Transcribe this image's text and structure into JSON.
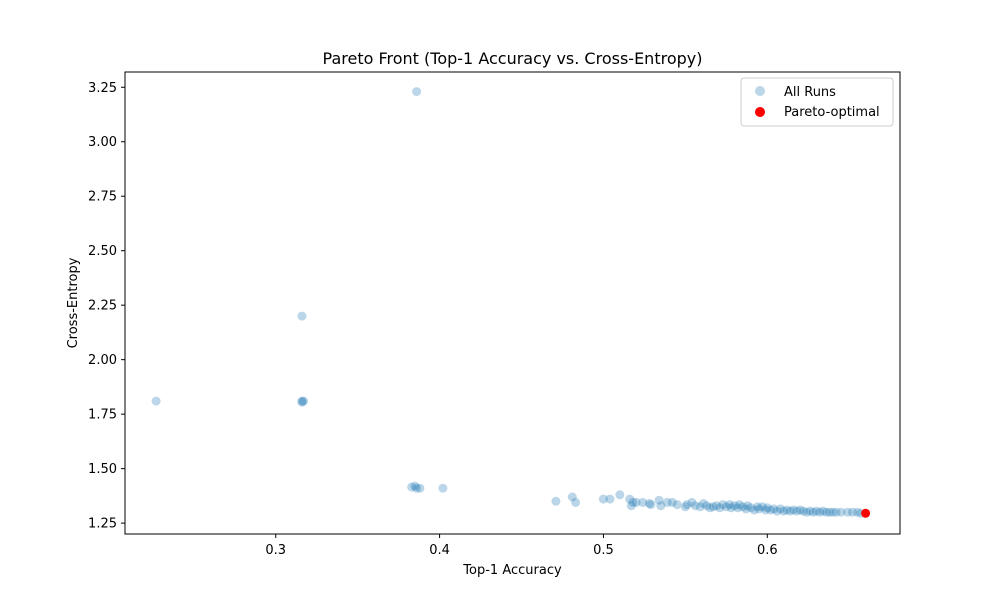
{
  "chart_data": {
    "type": "scatter",
    "title": "Pareto Front (Top-1 Accuracy vs. Cross-Entropy)",
    "xlabel": "Top-1 Accuracy",
    "ylabel": "Cross-Entropy",
    "xlim": [
      0.208,
      0.681
    ],
    "ylim": [
      1.2,
      3.32
    ],
    "xticks": [
      0.3,
      0.4,
      0.5,
      0.6
    ],
    "xtick_labels": [
      "0.3",
      "0.4",
      "0.5",
      "0.6"
    ],
    "yticks": [
      1.25,
      1.5,
      1.75,
      2.0,
      2.25,
      2.5,
      2.75,
      3.0,
      3.25
    ],
    "ytick_labels": [
      "1.25",
      "1.50",
      "1.75",
      "2.00",
      "2.25",
      "2.50",
      "2.75",
      "3.00",
      "3.25"
    ],
    "grid": false,
    "legend_position": "top-right",
    "series": [
      {
        "name": "All Runs",
        "color": "#1f77b4",
        "alpha": 0.3,
        "points": [
          [
            0.227,
            1.81
          ],
          [
            0.316,
            2.2
          ],
          [
            0.316,
            1.81
          ],
          [
            0.317,
            1.81
          ],
          [
            0.316,
            1.805
          ],
          [
            0.386,
            3.23
          ],
          [
            0.383,
            1.415
          ],
          [
            0.385,
            1.42
          ],
          [
            0.386,
            1.41
          ],
          [
            0.388,
            1.41
          ],
          [
            0.402,
            1.41
          ],
          [
            0.471,
            1.35
          ],
          [
            0.481,
            1.37
          ],
          [
            0.483,
            1.345
          ],
          [
            0.5,
            1.36
          ],
          [
            0.504,
            1.36
          ],
          [
            0.51,
            1.38
          ],
          [
            0.516,
            1.36
          ],
          [
            0.517,
            1.33
          ],
          [
            0.518,
            1.345
          ],
          [
            0.52,
            1.345
          ],
          [
            0.524,
            1.345
          ],
          [
            0.528,
            1.34
          ],
          [
            0.529,
            1.335
          ],
          [
            0.534,
            1.355
          ],
          [
            0.535,
            1.33
          ],
          [
            0.539,
            1.345
          ],
          [
            0.542,
            1.345
          ],
          [
            0.545,
            1.335
          ],
          [
            0.55,
            1.325
          ],
          [
            0.551,
            1.335
          ],
          [
            0.554,
            1.345
          ],
          [
            0.556,
            1.33
          ],
          [
            0.559,
            1.325
          ],
          [
            0.561,
            1.34
          ],
          [
            0.563,
            1.33
          ],
          [
            0.565,
            1.32
          ],
          [
            0.567,
            1.325
          ],
          [
            0.569,
            1.33
          ],
          [
            0.571,
            1.32
          ],
          [
            0.573,
            1.335
          ],
          [
            0.575,
            1.325
          ],
          [
            0.577,
            1.335
          ],
          [
            0.578,
            1.32
          ],
          [
            0.58,
            1.33
          ],
          [
            0.582,
            1.32
          ],
          [
            0.583,
            1.335
          ],
          [
            0.585,
            1.325
          ],
          [
            0.587,
            1.315
          ],
          [
            0.588,
            1.33
          ],
          [
            0.59,
            1.32
          ],
          [
            0.592,
            1.31
          ],
          [
            0.594,
            1.325
          ],
          [
            0.595,
            1.315
          ],
          [
            0.597,
            1.325
          ],
          [
            0.599,
            1.31
          ],
          [
            0.6,
            1.32
          ],
          [
            0.602,
            1.31
          ],
          [
            0.604,
            1.315
          ],
          [
            0.606,
            1.305
          ],
          [
            0.608,
            1.315
          ],
          [
            0.61,
            1.305
          ],
          [
            0.612,
            1.31
          ],
          [
            0.614,
            1.305
          ],
          [
            0.616,
            1.31
          ],
          [
            0.618,
            1.305
          ],
          [
            0.62,
            1.31
          ],
          [
            0.622,
            1.305
          ],
          [
            0.624,
            1.3
          ],
          [
            0.626,
            1.305
          ],
          [
            0.628,
            1.3
          ],
          [
            0.63,
            1.305
          ],
          [
            0.632,
            1.3
          ],
          [
            0.634,
            1.305
          ],
          [
            0.636,
            1.3
          ],
          [
            0.638,
            1.3
          ],
          [
            0.64,
            1.3
          ],
          [
            0.642,
            1.3
          ],
          [
            0.645,
            1.3
          ],
          [
            0.649,
            1.3
          ],
          [
            0.652,
            1.3
          ],
          [
            0.655,
            1.3
          ],
          [
            0.657,
            1.295
          ]
        ]
      },
      {
        "name": "Pareto-optimal",
        "color": "#ff0000",
        "alpha": 1.0,
        "points": [
          [
            0.66,
            1.295
          ]
        ]
      }
    ]
  }
}
